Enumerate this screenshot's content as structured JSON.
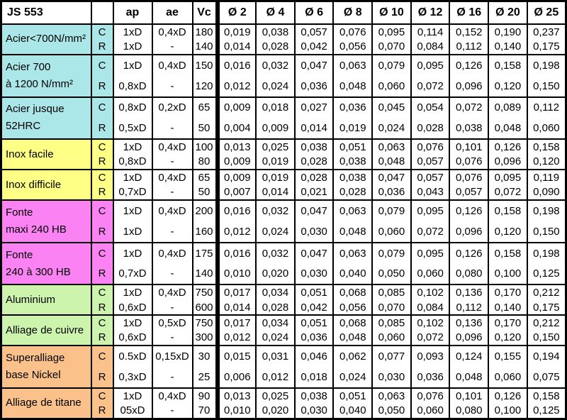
{
  "header": {
    "title": "JS 553",
    "col_ap": "ap",
    "col_ae": "ae",
    "col_vc": "Vc",
    "diameters": [
      "Ø 2",
      "Ø 4",
      "Ø 6",
      "Ø 8",
      "Ø 10",
      "Ø 12",
      "Ø 16",
      "Ø 20",
      "Ø 25"
    ]
  },
  "colors": {
    "cyan": "#abe7e8",
    "yellow": "#feff85",
    "magenta": "#fa82f2",
    "green": "#cdf4ad",
    "orange": "#fbc18b"
  },
  "groups": [
    {
      "material_lines": [
        "Acier<700N/mm²"
      ],
      "color": "cyan",
      "rows": [
        {
          "mode": "C",
          "ap": "1xD",
          "ae": "0,4xD",
          "vc": "180",
          "values": [
            "0,019",
            "0,038",
            "0,057",
            "0,076",
            "0,095",
            "0,114",
            "0,152",
            "0,190",
            "0,237"
          ]
        },
        {
          "mode": "R",
          "ap": "1xD",
          "ae": "-",
          "vc": "140",
          "values": [
            "0,014",
            "0,028",
            "0,042",
            "0,056",
            "0,070",
            "0,084",
            "0,112",
            "0,140",
            "0,175"
          ]
        }
      ]
    },
    {
      "material_lines": [
        "Acier 700",
        "à 1200 N/mm²"
      ],
      "color": "cyan",
      "rows": [
        {
          "mode": "C",
          "ap": "1xD",
          "ae": "0,4xD",
          "vc": "150",
          "values": [
            "0,016",
            "0,032",
            "0,047",
            "0,063",
            "0,079",
            "0,095",
            "0,126",
            "0,158",
            "0,198"
          ]
        },
        {
          "mode": "R",
          "ap": "0,8xD",
          "ae": "-",
          "vc": "120",
          "values": [
            "0,012",
            "0,024",
            "0,036",
            "0,048",
            "0,060",
            "0,072",
            "0,096",
            "0,120",
            "0,150"
          ]
        }
      ]
    },
    {
      "material_lines": [
        "Acier jusque",
        "52HRC"
      ],
      "color": "cyan",
      "rows": [
        {
          "mode": "C",
          "ap": "0,8xD",
          "ae": "0,2xD",
          "vc": "65",
          "values": [
            "0,009",
            "0,018",
            "0,027",
            "0,036",
            "0,045",
            "0,054",
            "0,072",
            "0,089",
            "0,112"
          ]
        },
        {
          "mode": "R",
          "ap": "0,5xD",
          "ae": "-",
          "vc": "50",
          "values": [
            "0,004",
            "0,009",
            "0,014",
            "0,019",
            "0,024",
            "0,028",
            "0,038",
            "0,048",
            "0,060"
          ]
        }
      ]
    },
    {
      "material_lines": [
        "Inox facile"
      ],
      "color": "yellow",
      "rows": [
        {
          "mode": "C",
          "ap": "1xD",
          "ae": "0,4xD",
          "vc": "100",
          "values": [
            "0,013",
            "0,025",
            "0,038",
            "0,051",
            "0,063",
            "0,076",
            "0,101",
            "0,126",
            "0,158"
          ]
        },
        {
          "mode": "R",
          "ap": "0,8xD",
          "ae": "-",
          "vc": "80",
          "values": [
            "0,009",
            "0,019",
            "0,028",
            "0,038",
            "0,048",
            "0,057",
            "0,076",
            "0,096",
            "0,120"
          ]
        }
      ]
    },
    {
      "material_lines": [
        "Inox difficile"
      ],
      "color": "yellow",
      "rows": [
        {
          "mode": "C",
          "ap": "1xD",
          "ae": "0,4xD",
          "vc": "65",
          "values": [
            "0,009",
            "0,019",
            "0,028",
            "0,038",
            "0,047",
            "0,057",
            "0,076",
            "0,095",
            "0,119"
          ]
        },
        {
          "mode": "R",
          "ap": "0,7xD",
          "ae": "-",
          "vc": "50",
          "values": [
            "0,007",
            "0,014",
            "0,021",
            "0,028",
            "0,036",
            "0,043",
            "0,057",
            "0,072",
            "0,090"
          ]
        }
      ]
    },
    {
      "material_lines": [
        "Fonte",
        "maxi 240 HB"
      ],
      "color": "magenta",
      "rows": [
        {
          "mode": "C",
          "ap": "1xD",
          "ae": "0,4xD",
          "vc": "200",
          "values": [
            "0,016",
            "0,032",
            "0,047",
            "0,063",
            "0,079",
            "0,095",
            "0,126",
            "0,158",
            "0,198"
          ]
        },
        {
          "mode": "R",
          "ap": "1xD",
          "ae": "-",
          "vc": "160",
          "values": [
            "0,012",
            "0,024",
            "0,030",
            "0,048",
            "0,060",
            "0,072",
            "0,096",
            "0,120",
            "0,150"
          ]
        }
      ]
    },
    {
      "material_lines": [
        "Fonte",
        "240 à 300 HB"
      ],
      "color": "magenta",
      "rows": [
        {
          "mode": "C",
          "ap": "1xD",
          "ae": "0,4xD",
          "vc": "175",
          "values": [
            "0,016",
            "0,032",
            "0,047",
            "0,063",
            "0,079",
            "0,095",
            "0,126",
            "0,158",
            "0,198"
          ]
        },
        {
          "mode": "R",
          "ap": "0,7xD",
          "ae": "-",
          "vc": "140",
          "values": [
            "0,010",
            "0,020",
            "0,030",
            "0,040",
            "0,050",
            "0,060",
            "0,080",
            "0,100",
            "0,125"
          ]
        }
      ]
    },
    {
      "material_lines": [
        "Aluminium"
      ],
      "color": "green",
      "rows": [
        {
          "mode": "C",
          "ap": "1xD",
          "ae": "0,4xD",
          "vc": "750",
          "values": [
            "0,017",
            "0,034",
            "0,051",
            "0,068",
            "0,085",
            "0,102",
            "0,136",
            "0,170",
            "0,212"
          ]
        },
        {
          "mode": "R",
          "ap": "0,6xD",
          "ae": "-",
          "vc": "600",
          "values": [
            "0,014",
            "0,028",
            "0,042",
            "0,056",
            "0,070",
            "0,084",
            "0,112",
            "0,140",
            "0,175"
          ]
        }
      ]
    },
    {
      "material_lines": [
        "Alliage de cuivre"
      ],
      "color": "green",
      "rows": [
        {
          "mode": "C",
          "ap": "1xD",
          "ae": "0,5xD",
          "vc": "750",
          "values": [
            "0,017",
            "0,034",
            "0,051",
            "0,068",
            "0,085",
            "0,102",
            "0,136",
            "0,170",
            "0,212"
          ]
        },
        {
          "mode": "R",
          "ap": "0,6xD",
          "ae": "-",
          "vc": "300",
          "values": [
            "0,012",
            "0,024",
            "0,036",
            "0,048",
            "0,060",
            "0,072",
            "0,096",
            "0,120",
            "0,150"
          ]
        }
      ]
    },
    {
      "material_lines": [
        "Superalliage",
        "base Nickel"
      ],
      "color": "orange",
      "rows": [
        {
          "mode": "C",
          "ap": "0.5xD",
          "ae": "0,15xD",
          "vc": "30",
          "values": [
            "0,015",
            "0,031",
            "0,046",
            "0,062",
            "0,077",
            "0,093",
            "0,124",
            "0,155",
            "0,194"
          ]
        },
        {
          "mode": "R",
          "ap": "0,3xD",
          "ae": "-",
          "vc": "25",
          "values": [
            "0,006",
            "0,012",
            "0,018",
            "0,024",
            "0,030",
            "0,036",
            "0,048",
            "0,060",
            "0,075"
          ]
        }
      ]
    },
    {
      "material_lines": [
        "Alliage de titane"
      ],
      "color": "orange",
      "rows": [
        {
          "mode": "C",
          "ap": "1xD",
          "ae": "0,4xD",
          "vc": "90",
          "values": [
            "0,013",
            "0,025",
            "0,038",
            "0,051",
            "0,063",
            "0,076",
            "0,101",
            "0,126",
            "0,158"
          ]
        },
        {
          "mode": "R",
          "ap": "05xD",
          "ae": "-",
          "vc": "70",
          "values": [
            "0,010",
            "0,020",
            "0,030",
            "0,040",
            "0,050",
            "0,060",
            "0,080",
            "0,100",
            "0,125"
          ]
        }
      ]
    }
  ]
}
